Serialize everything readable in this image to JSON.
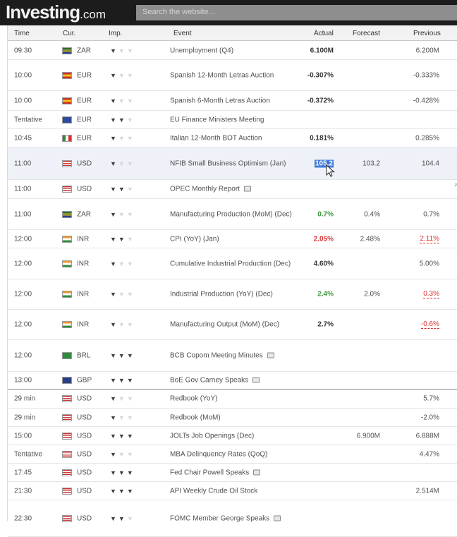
{
  "header": {
    "logo_main": "Investing",
    "logo_domain": ".com",
    "search_placeholder": "Search the website..."
  },
  "columns": {
    "time": "Time",
    "currency": "Cur.",
    "importance": "Imp.",
    "event": "Event",
    "actual": "Actual",
    "forecast": "Forecast",
    "previous": "Previous"
  },
  "rows": [
    {
      "time": "09:30",
      "flag": "za",
      "currency": "ZAR",
      "imp": 1,
      "event": "Unemployment (Q4)",
      "actual": "6.100M",
      "actual_color": "black",
      "forecast": "",
      "previous": "6.200M",
      "previous_color": "normal"
    },
    {
      "time": "10:00",
      "flag": "es",
      "currency": "EUR",
      "imp": 1,
      "event": "Spanish 12-Month Letras Auction",
      "actual": "-0.307%",
      "actual_color": "black",
      "forecast": "",
      "previous": "-0.333%",
      "previous_color": "normal"
    },
    {
      "time": "10:00",
      "flag": "es",
      "currency": "EUR",
      "imp": 1,
      "event": "Spanish 6-Month Letras Auction",
      "actual": "-0.372%",
      "actual_color": "black",
      "forecast": "",
      "previous": "-0.428%",
      "previous_color": "normal"
    },
    {
      "time": "Tentative",
      "flag": "eu",
      "currency": "EUR",
      "imp": 2,
      "event": "EU Finance Ministers Meeting",
      "actual": "",
      "actual_color": "black",
      "forecast": "",
      "previous": "",
      "previous_color": "normal"
    },
    {
      "time": "10:45",
      "flag": "it",
      "currency": "EUR",
      "imp": 1,
      "event": "Italian 12-Month BOT Auction",
      "actual": "0.181%",
      "actual_color": "black",
      "forecast": "",
      "previous": "0.285%",
      "previous_color": "normal"
    },
    {
      "time": "11:00",
      "flag": "us",
      "currency": "USD",
      "imp": 1,
      "event": "NFIB Small Business Optimism (Jan)",
      "actual": "105.2",
      "actual_color": "selected",
      "forecast": "103.2",
      "previous": "104.4",
      "previous_color": "normal"
    },
    {
      "time": "11:00",
      "flag": "us",
      "currency": "USD",
      "imp": 2,
      "event": "OPEC Monthly Report",
      "actual": "",
      "actual_color": "black",
      "forecast": "",
      "previous": "",
      "previous_color": "normal"
    },
    {
      "time": "11:00",
      "flag": "za",
      "currency": "ZAR",
      "imp": 1,
      "event": "Manufacturing Production (MoM) (Dec)",
      "actual": "0.7%",
      "actual_color": "green",
      "forecast": "0.4%",
      "previous": "0.7%",
      "previous_color": "normal"
    },
    {
      "time": "12:00",
      "flag": "in",
      "currency": "INR",
      "imp": 2,
      "event": "CPI (YoY) (Jan)",
      "actual": "2.05%",
      "actual_color": "red",
      "forecast": "2.48%",
      "previous": "2.11%",
      "previous_color": "red"
    },
    {
      "time": "12:00",
      "flag": "in",
      "currency": "INR",
      "imp": 1,
      "event": "Cumulative Industrial Production (Dec)",
      "actual": "4.60%",
      "actual_color": "black",
      "forecast": "",
      "previous": "5.00%",
      "previous_color": "normal"
    },
    {
      "time": "12:00",
      "flag": "in",
      "currency": "INR",
      "imp": 1,
      "event": "Industrial Production (YoY) (Dec)",
      "actual": "2.4%",
      "actual_color": "green",
      "forecast": "2.0%",
      "previous": "0.3%",
      "previous_color": "red"
    },
    {
      "time": "12:00",
      "flag": "in",
      "currency": "INR",
      "imp": 1,
      "event": "Manufacturing Output (MoM) (Dec)",
      "actual": "2.7%",
      "actual_color": "black",
      "forecast": "",
      "previous": "-0.6%",
      "previous_color": "red"
    },
    {
      "time": "12:00",
      "flag": "br",
      "currency": "BRL",
      "imp": 3,
      "event": "BCB Copom Meeting Minutes",
      "actual": "",
      "actual_color": "black",
      "forecast": "",
      "previous": "",
      "previous_color": "normal"
    },
    {
      "time": "13:00",
      "flag": "gb",
      "currency": "GBP",
      "imp": 3,
      "event": "BoE Gov Carney Speaks",
      "actual": "",
      "actual_color": "black",
      "forecast": "",
      "previous": "",
      "previous_color": "normal"
    },
    {
      "time": "29 min",
      "flag": "us",
      "currency": "USD",
      "imp": 1,
      "event": "Redbook (YoY)",
      "actual": "",
      "actual_color": "black",
      "forecast": "",
      "previous": "5.7%",
      "previous_color": "normal"
    },
    {
      "time": "29 min",
      "flag": "us",
      "currency": "USD",
      "imp": 1,
      "event": "Redbook (MoM)",
      "actual": "",
      "actual_color": "black",
      "forecast": "",
      "previous": "-2.0%",
      "previous_color": "normal"
    },
    {
      "time": "15:00",
      "flag": "us",
      "currency": "USD",
      "imp": 3,
      "event": "JOLTs Job Openings (Dec)",
      "actual": "",
      "actual_color": "black",
      "forecast": "6.900M",
      "previous": "6.888M",
      "previous_color": "normal"
    },
    {
      "time": "Tentative",
      "flag": "us",
      "currency": "USD",
      "imp": 1,
      "event": "MBA Delinquency Rates (QoQ)",
      "actual": "",
      "actual_color": "black",
      "forecast": "",
      "previous": "4.47%",
      "previous_color": "normal"
    },
    {
      "time": "17:45",
      "flag": "us",
      "currency": "USD",
      "imp": 3,
      "event": "Fed Chair Powell Speaks",
      "actual": "",
      "actual_color": "black",
      "forecast": "",
      "previous": "",
      "previous_color": "normal"
    },
    {
      "time": "21:30",
      "flag": "us",
      "currency": "USD",
      "imp": 3,
      "event": "API Weekly Crude Oil Stock",
      "actual": "",
      "actual_color": "black",
      "forecast": "",
      "previous": "2.514M",
      "previous_color": "normal"
    },
    {
      "time": "22:30",
      "flag": "us",
      "currency": "USD",
      "imp": 2,
      "event": "FOMC Member George Speaks",
      "actual": "",
      "actual_color": "black",
      "forecast": "",
      "previous": "",
      "previous_color": "normal"
    }
  ],
  "colors": {
    "header_bg": "#1c1c1c",
    "positive": "#3f9a3f",
    "negative": "#d93333",
    "selection": "#3d78d8"
  }
}
